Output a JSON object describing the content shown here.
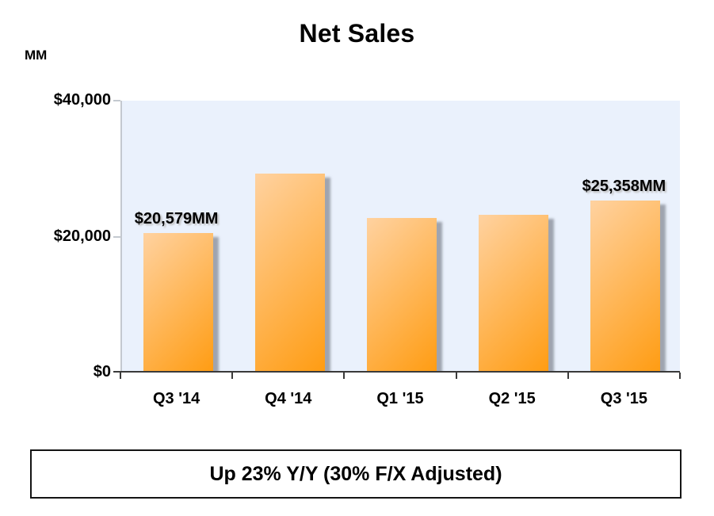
{
  "page": {
    "title": "Net Sales",
    "unit_label": "MM",
    "caption": "Up 23% Y/Y (30% F/X Adjusted)"
  },
  "colors": {
    "plot_background": "#EAF1FC",
    "bar_gradient_light": "#FFD2A0",
    "bar_gradient_dark": "#FF9C12",
    "bar_shadow": "rgba(108,114,124,0.6)",
    "axis_line_dark": "#3A3A3A",
    "axis_line_light": "#C4C9D0",
    "text": "#000000"
  },
  "chart_data": {
    "type": "bar",
    "title": "Net Sales",
    "unit": "MM",
    "categories": [
      "Q3 '14",
      "Q4 '14",
      "Q1 '15",
      "Q2 '15",
      "Q3 '15"
    ],
    "values": [
      20579,
      29328,
      22717,
      23185,
      25358
    ],
    "value_labels_shown": [
      {
        "index": 0,
        "text": "$20,579MM"
      },
      {
        "index": 4,
        "text": "$25,358MM"
      }
    ],
    "ylim": [
      0,
      40000
    ],
    "yticks": [
      {
        "value": 0,
        "label": "$0"
      },
      {
        "value": 20000,
        "label": "$20,000"
      },
      {
        "value": 40000,
        "label": "$40,000"
      }
    ],
    "grid": false,
    "legend": "none",
    "caption": "Up 23% Y/Y (30% F/X Adjusted)"
  }
}
